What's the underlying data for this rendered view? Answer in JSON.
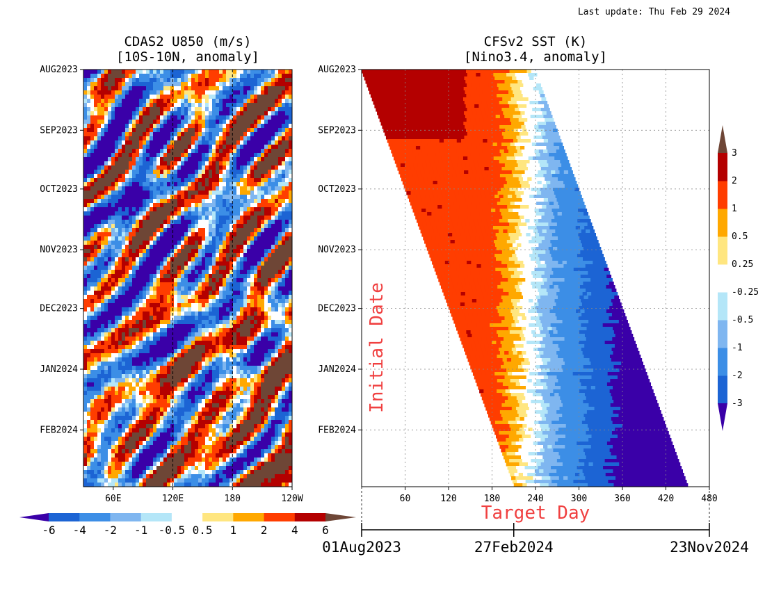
{
  "last_update": "Last update: Thu Feb 29 2024",
  "chart_data": [
    {
      "type": "heatmap",
      "title_line1": "CDAS2 U850 (m/s)",
      "title_line2": "[10S-10N, anomaly]",
      "x_tick_labels": [
        "60E",
        "120E",
        "180",
        "120W"
      ],
      "x_ticks_deg_east": [
        60,
        120,
        180,
        240
      ],
      "xlim_deg_east": [
        30,
        240
      ],
      "y_tick_labels": [
        "AUG2023",
        "SEP2023",
        "OCT2023",
        "NOV2023",
        "DEC2023",
        "JAN2024",
        "FEB2024"
      ],
      "ylim": [
        "2023-08-01",
        "2024-03-01"
      ],
      "reference_lines_deg_east": [
        120,
        180
      ],
      "colorbar": {
        "levels": [
          -6,
          -4,
          -2,
          -1,
          -0.5,
          0.5,
          1,
          2,
          4,
          6
        ],
        "tick_labels": [
          "-6",
          "-4",
          "-2",
          "-1",
          "-0.5",
          "0.5",
          "1",
          "2",
          "4",
          "6"
        ],
        "colors": [
          "#3a00a8",
          "#1c64d4",
          "#3c8ee6",
          "#7fb6f0",
          "#b4e6f8",
          "#ffffff",
          "#ffe680",
          "#ffa800",
          "#ff3d00",
          "#b40000",
          "#6e4636"
        ]
      }
    },
    {
      "type": "heatmap",
      "title_line1": "CFSv2 SST (K)",
      "title_line2": "[Nino3.4, anomaly]",
      "xlabel": "Target Day",
      "ylabel": "Initial Date",
      "x_tick_labels": [
        "60",
        "120",
        "180",
        "240",
        "300",
        "360",
        "420",
        "480"
      ],
      "xlim": [
        0,
        480
      ],
      "y_tick_labels": [
        "AUG2023",
        "SEP2023",
        "OCT2023",
        "NOV2023",
        "DEC2023",
        "JAN2024",
        "FEB2024"
      ],
      "ylim": [
        "2023-08-01",
        "2024-03-01"
      ],
      "grid": true,
      "date_axis": {
        "labels": [
          "01Aug2023",
          "27Feb2024",
          "23Nov2024"
        ],
        "target_days": [
          0,
          210,
          480
        ]
      },
      "colorbar": {
        "levels": [
          -3,
          -2,
          -1,
          -0.5,
          -0.25,
          0.25,
          0.5,
          1,
          2,
          3
        ],
        "tick_labels": [
          "-3",
          "-2",
          "-1",
          "-0.5",
          "-0.25",
          "0.25",
          "0.5",
          "1",
          "2",
          "3"
        ],
        "colors": [
          "#3a00a8",
          "#1c64d4",
          "#3c8ee6",
          "#7fb6f0",
          "#b4e6f8",
          "#ffffff",
          "#ffe680",
          "#ffa800",
          "#ff3d00",
          "#b40000",
          "#6e4636"
        ]
      }
    }
  ]
}
